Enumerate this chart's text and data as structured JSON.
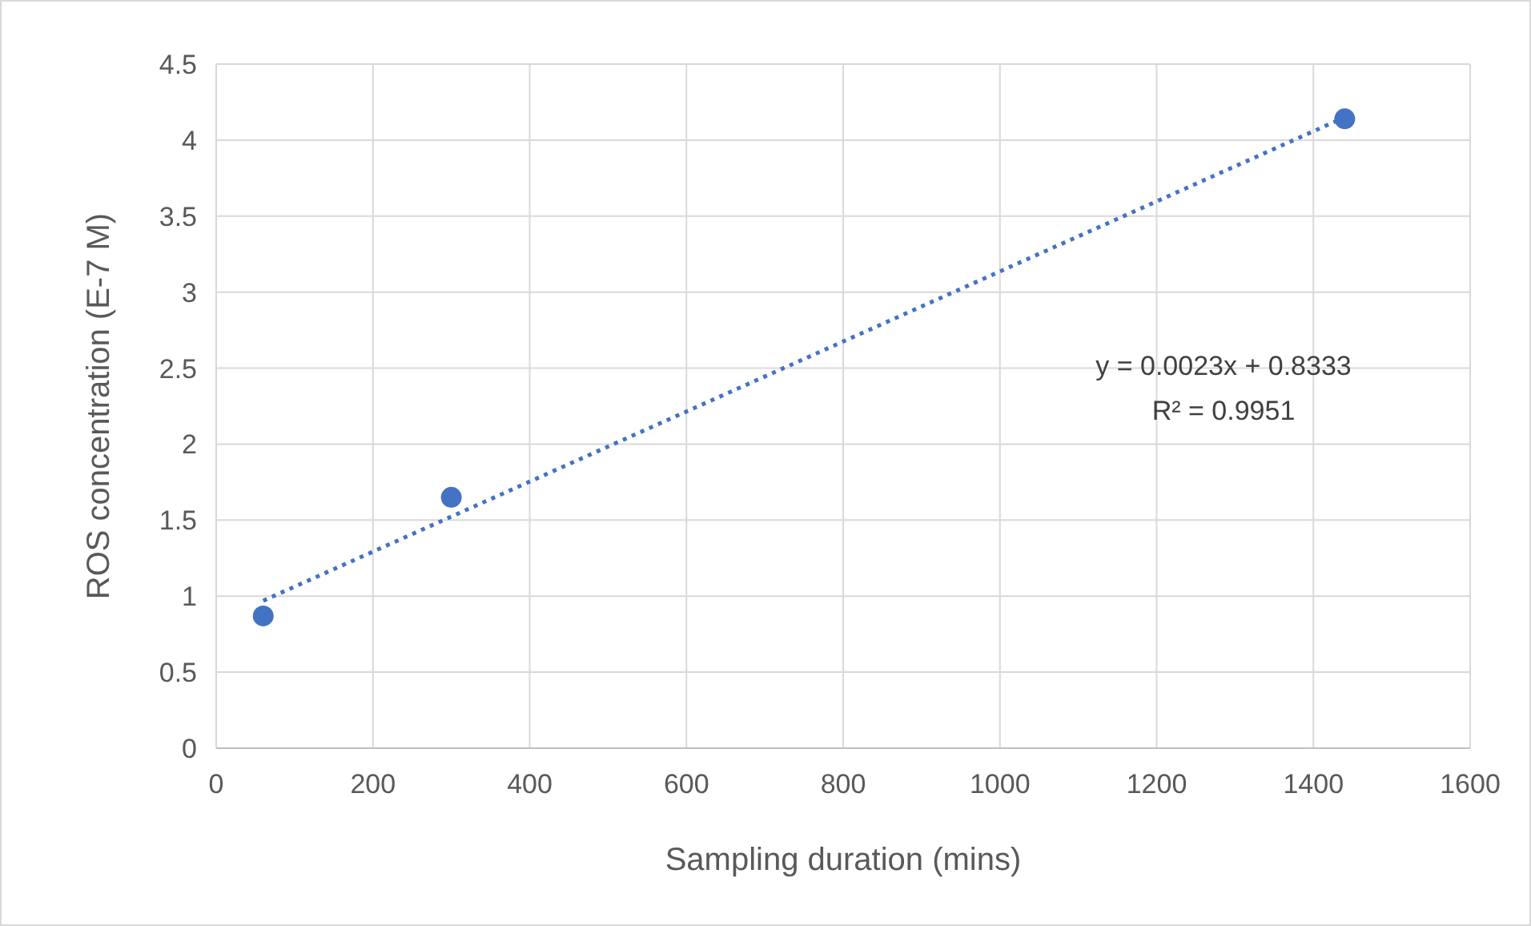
{
  "chart_data": {
    "type": "scatter",
    "xlabel": "Sampling duration (mins)",
    "ylabel": "ROS concentration (E-7 M)",
    "xlim": [
      0,
      1600
    ],
    "xticks": [
      0,
      200,
      400,
      600,
      800,
      1000,
      1200,
      1400,
      1600
    ],
    "ylim": [
      0,
      4.5
    ],
    "yticks": [
      0,
      {
        "value": 0.5,
        "label": "0.5"
      },
      1,
      1.5,
      2,
      2.5,
      3,
      3.5,
      4,
      4.5
    ],
    "grid": true,
    "series": [
      {
        "color": "#4472c4",
        "marker": "circle",
        "x": [
          60,
          300,
          1440
        ],
        "values": [
          0.87,
          1.65,
          4.14
        ]
      },
      {
        "type": "line",
        "color": "#4472c4",
        "line_style": "dotted",
        "marker": "none",
        "x": [
          60,
          1440
        ],
        "values": [
          0.97,
          4.15
        ]
      }
    ],
    "annotations": [
      "y = 0.0023x + 0.8333",
      "R² = 0.9951"
    ]
  }
}
